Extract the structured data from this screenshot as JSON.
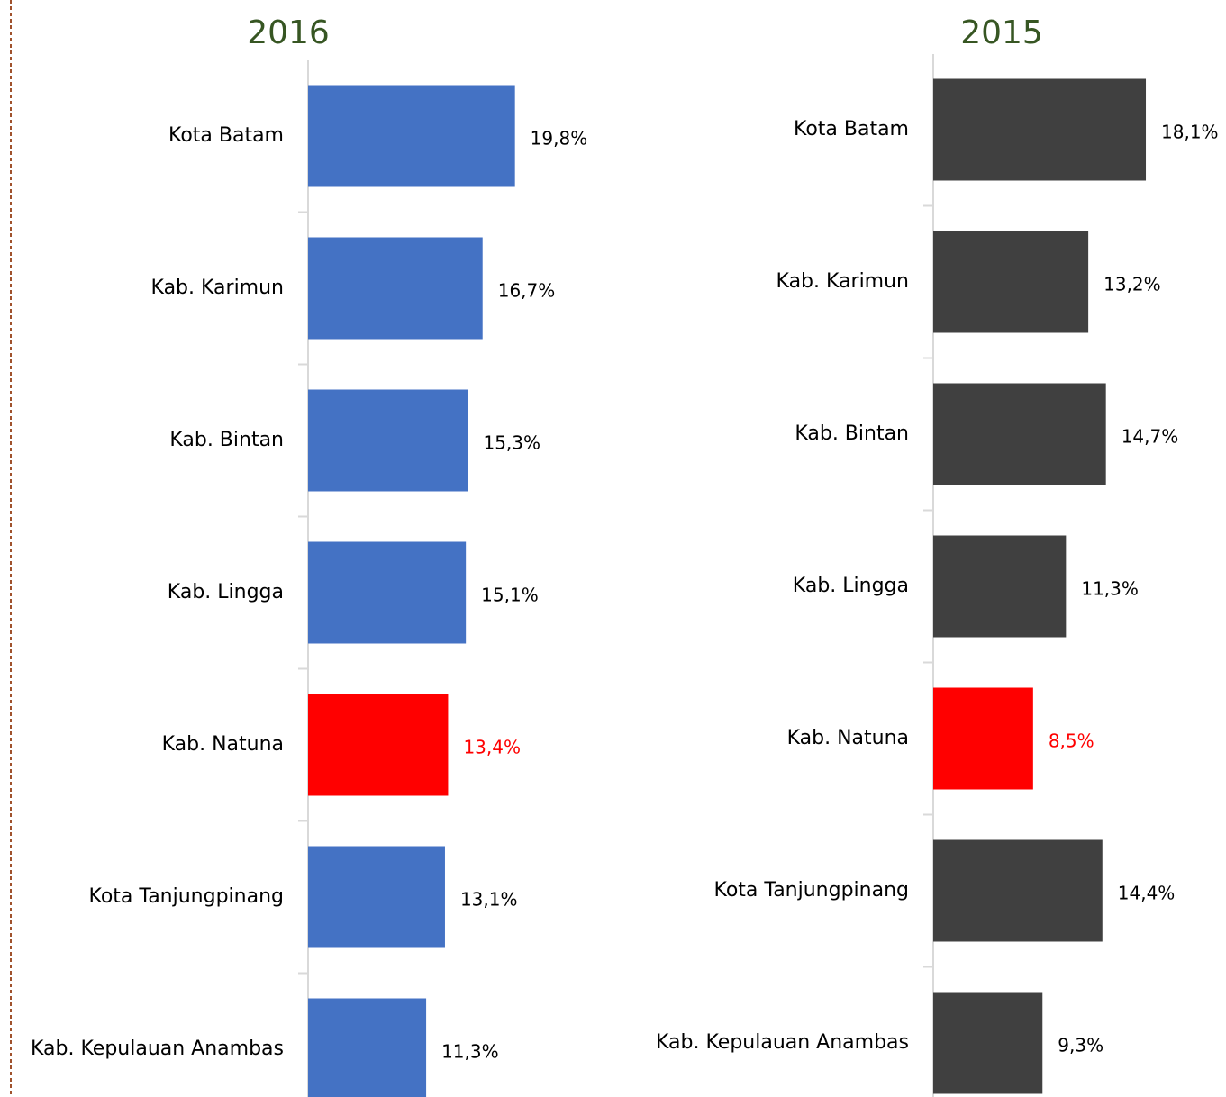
{
  "chart_data": [
    {
      "type": "bar",
      "orientation": "horizontal",
      "title": "2016",
      "categories": [
        "Kota Batam",
        "Kab. Karimun",
        "Kab. Bintan",
        "Kab. Lingga",
        "Kab. Natuna",
        "Kota Tanjungpinang",
        "Kab. Kepulauan Anambas"
      ],
      "values": [
        19.8,
        16.7,
        15.3,
        15.1,
        13.4,
        13.1,
        11.3
      ],
      "value_labels": [
        "19,8%",
        "16,7%",
        "15,3%",
        "15,1%",
        "13,4%",
        "13,1%",
        "11,3%"
      ],
      "colors": [
        "#4472c4",
        "#4472c4",
        "#4472c4",
        "#4472c4",
        "#ff0000",
        "#4472c4",
        "#4472c4"
      ],
      "value_label_colors": [
        "#000000",
        "#000000",
        "#000000",
        "#000000",
        "#ff0000",
        "#000000",
        "#000000"
      ],
      "xlim": [
        0,
        30
      ]
    },
    {
      "type": "bar",
      "orientation": "horizontal",
      "title": "2015",
      "categories": [
        "Kota Batam",
        "Kab. Karimun",
        "Kab. Bintan",
        "Kab. Lingga",
        "Kab. Natuna",
        "Kota Tanjungpinang",
        "Kab. Kepulauan Anambas"
      ],
      "values": [
        18.1,
        13.2,
        14.7,
        11.3,
        8.5,
        14.4,
        9.3
      ],
      "value_labels": [
        "18,1%",
        "13,2%",
        "14,7%",
        "11,3%",
        "8,5%",
        "14,4%",
        "9,3%"
      ],
      "colors": [
        "#404040",
        "#404040",
        "#404040",
        "#404040",
        "#ff0000",
        "#404040",
        "#404040"
      ],
      "value_label_colors": [
        "#000000",
        "#000000",
        "#000000",
        "#000000",
        "#ff0000",
        "#000000",
        "#000000"
      ],
      "xlim": [
        0,
        25
      ]
    }
  ]
}
